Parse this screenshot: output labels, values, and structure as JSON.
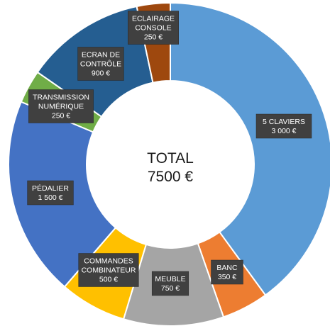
{
  "chart_data": {
    "type": "donut",
    "center_label": [
      "TOTAL",
      "7500 €"
    ],
    "slices": [
      {
        "name": [
          "5 CLAVIERS"
        ],
        "value": 3000,
        "value_label": "3 000 €",
        "color": "#5B9BD5"
      },
      {
        "name": [
          "BANC"
        ],
        "value": 350,
        "value_label": "350 €",
        "color": "#ED7D31"
      },
      {
        "name": [
          "MEUBLE"
        ],
        "value": 750,
        "value_label": "750 €",
        "color": "#A5A5A5"
      },
      {
        "name": [
          "COMMANDES",
          "COMBINATEUR"
        ],
        "value": 500,
        "value_label": "500 €",
        "color": "#FFC000"
      },
      {
        "name": [
          "PÉDALIER"
        ],
        "value": 1500,
        "value_label": "1 500 €",
        "color": "#4472C4"
      },
      {
        "name": [
          "TRANSMISSION",
          "NUMÉRIQUE"
        ],
        "value": 250,
        "value_label": "250 €",
        "color": "#70AD47"
      },
      {
        "name": [
          "ECRAN DE",
          "CONTRÔLE"
        ],
        "value": 900,
        "value_label": "900 €",
        "color": "#255E91"
      },
      {
        "name": [
          "ECLAIRAGE",
          "CONSOLE"
        ],
        "value": 250,
        "value_label": "250 €",
        "color": "#9E480E"
      }
    ],
    "legend": "none"
  }
}
